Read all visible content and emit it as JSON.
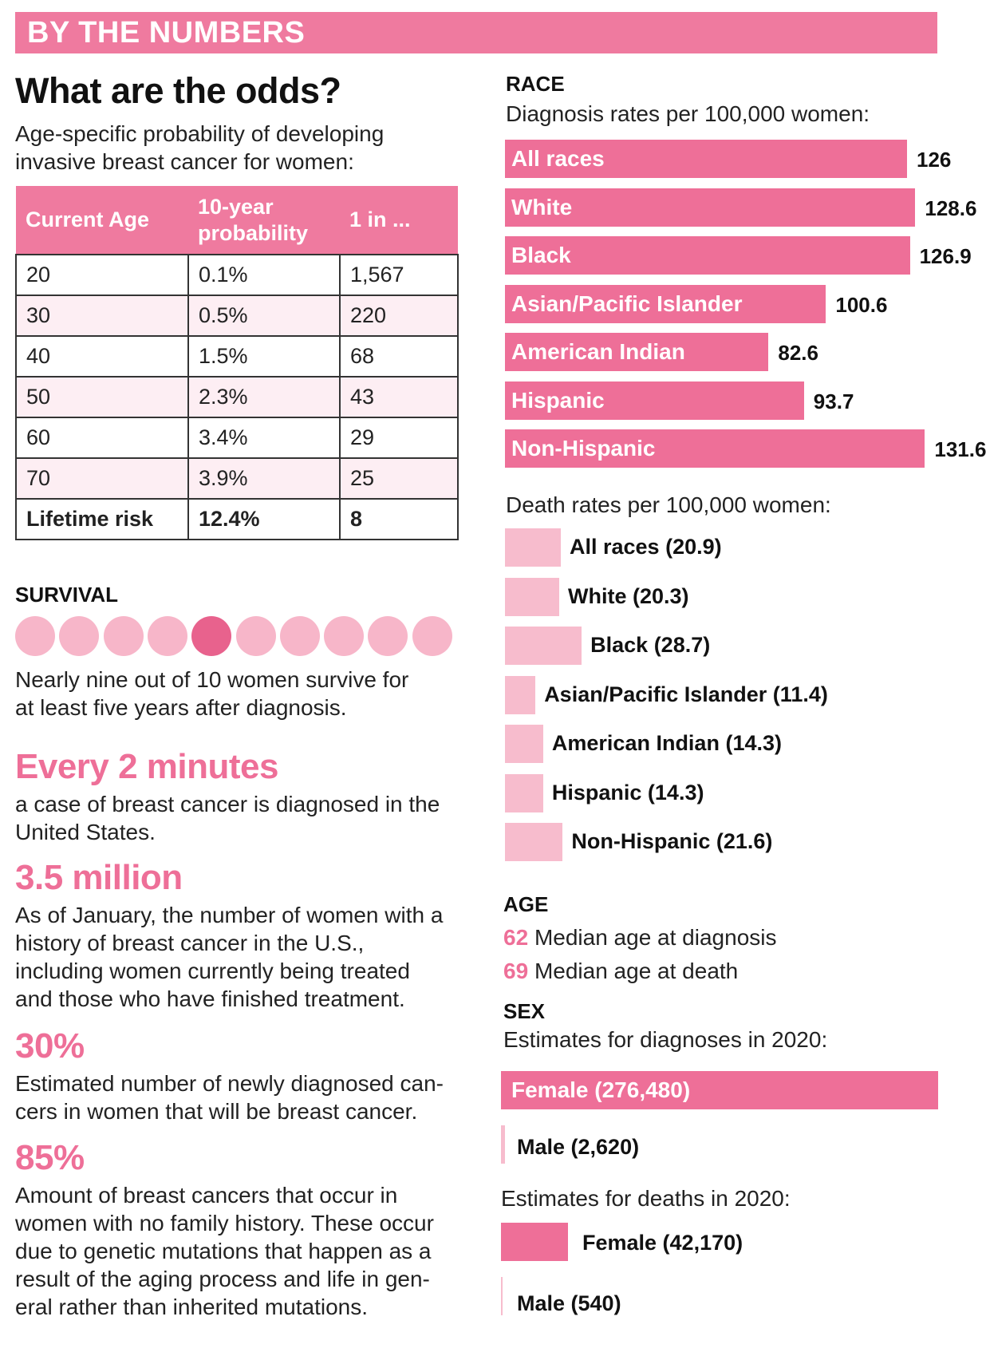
{
  "banner": {
    "title": "BY THE NUMBERS"
  },
  "odds": {
    "title": "What are the odds?",
    "subtitle_line1": "Age-specific probability of developing",
    "subtitle_line2": "invasive breast cancer for women:",
    "table": {
      "headers": [
        "Current Age",
        "10-year probability",
        "1 in ..."
      ],
      "rows": [
        [
          "20",
          "0.1%",
          "1,567"
        ],
        [
          "30",
          "0.5%",
          "220"
        ],
        [
          "40",
          "1.5%",
          "68"
        ],
        [
          "50",
          "2.3%",
          "43"
        ],
        [
          "60",
          "3.4%",
          "29"
        ],
        [
          "70",
          "3.9%",
          "25"
        ],
        [
          "Lifetime risk",
          "12.4%",
          "8"
        ]
      ]
    }
  },
  "survival": {
    "label": "SURVIVAL",
    "dots_total": 10,
    "dots_highlight_index": 4,
    "text_line1": "Nearly nine out of 10 women survive for",
    "text_line2": "at least five years after diagnosis."
  },
  "facts": [
    {
      "headline": "Every 2 minutes",
      "lines": [
        "a case of breast cancer is diagnosed in the",
        "United States."
      ]
    },
    {
      "headline": "3.5 million",
      "lines": [
        "As of January, the number of women with a",
        "history of breast cancer in the U.S.,",
        "including women currently being treated",
        "and those who have finished treatment."
      ]
    },
    {
      "headline": "30%",
      "lines": [
        "Estimated number of newly diagnosed can-",
        "cers in women that will be breast cancer."
      ]
    },
    {
      "headline": "85%",
      "lines": [
        "Amount of breast cancers that occur in",
        "women with no family history. These occur",
        "due to genetic mutations that happen as a",
        "result of the aging process and life in gen-",
        "eral rather than inherited mutations."
      ]
    }
  ],
  "race": {
    "label": "RACE",
    "diagnosis_subtitle": "Diagnosis rates per 100,000 women:",
    "death_subtitle": "Death rates per 100,000 women:"
  },
  "age": {
    "label": "AGE",
    "diagnosis_value": "62",
    "diagnosis_text": "Median age at diagnosis",
    "death_value": "69",
    "death_text": "Median age at death"
  },
  "sex": {
    "label": "SEX",
    "diagnoses_subtitle": "Estimates for diagnoses in 2020:",
    "deaths_subtitle": "Estimates for deaths in 2020:"
  },
  "colors": {
    "accent": "#ee6f98",
    "light": "#f7bccd",
    "banner": "#ef7a9f"
  },
  "chart_data": [
    {
      "type": "bar",
      "title": "Diagnosis rates per 100,000 women",
      "categories": [
        "All races",
        "White",
        "Black",
        "Asian/Pacific Islander",
        "American Indian",
        "Hispanic",
        "Non-Hispanic"
      ],
      "values": [
        126,
        128.6,
        126.9,
        100.6,
        82.6,
        93.7,
        131.6
      ],
      "value_labels": [
        "126",
        "128.6",
        "126.9",
        "100.6",
        "82.6",
        "93.7",
        "131.6"
      ]
    },
    {
      "type": "bar",
      "title": "Death rates per 100,000 women",
      "categories": [
        "All races",
        "White",
        "Black",
        "Asian/Pacific Islander",
        "American Indian",
        "Hispanic",
        "Non-Hispanic"
      ],
      "values": [
        20.9,
        20.3,
        28.7,
        11.4,
        14.3,
        14.3,
        21.6
      ],
      "labels": [
        "All races (20.9)",
        "White (20.3)",
        "Black (28.7)",
        "Asian/Pacific Islander (11.4)",
        "American Indian (14.3)",
        "Hispanic (14.3)",
        "Non-Hispanic (21.6)"
      ]
    },
    {
      "type": "bar",
      "title": "Estimates for diagnoses in 2020",
      "categories": [
        "Female",
        "Male"
      ],
      "values": [
        276480,
        2620
      ],
      "labels": [
        "Female (276,480)",
        "Male (2,620)"
      ]
    },
    {
      "type": "bar",
      "title": "Estimates for deaths in 2020",
      "categories": [
        "Female",
        "Male"
      ],
      "values": [
        42170,
        540
      ],
      "labels": [
        "Female (42,170)",
        "Male (540)"
      ]
    }
  ]
}
